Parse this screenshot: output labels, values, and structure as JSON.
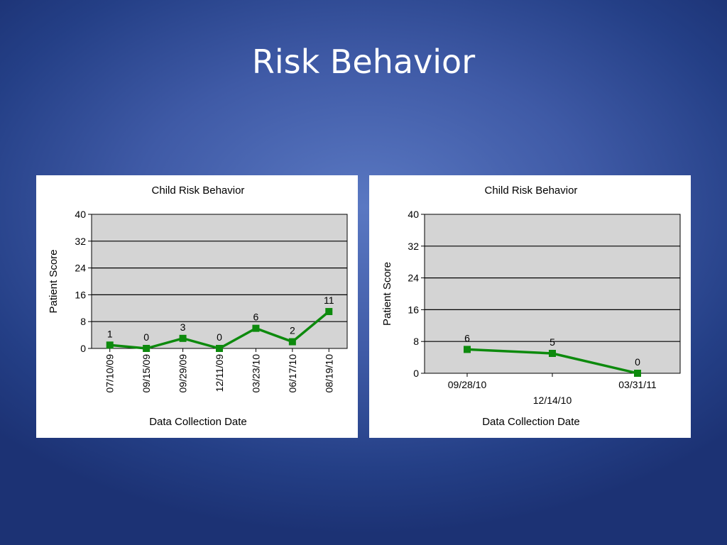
{
  "slide": {
    "title": "Risk Behavior"
  },
  "chart_data": [
    {
      "type": "line",
      "title": "Child Risk Behavior",
      "xlabel": "Data Collection Date",
      "ylabel": "Patient Score",
      "categories": [
        "07/10/09",
        "09/15/09",
        "09/29/09",
        "12/11/09",
        "03/23/10",
        "06/17/10",
        "08/19/10"
      ],
      "series": [
        {
          "values": [
            1,
            0,
            3,
            0,
            6,
            2,
            11
          ],
          "color": "#0d8a0d"
        }
      ],
      "data_labels": [
        "1",
        "0",
        "3",
        "0",
        "6",
        "2",
        "11"
      ],
      "ylim": [
        0,
        40
      ],
      "yticks": [
        "0",
        "8",
        "16",
        "24",
        "32",
        "40"
      ],
      "grid": true,
      "plot_background": "#d4d4d4",
      "x_tick_orientation": "vertical"
    },
    {
      "type": "line",
      "title": "Child Risk Behavior",
      "xlabel": "Data Collection Date",
      "ylabel": "Patient Score",
      "categories": [
        "09/28/10",
        "12/14/10",
        "03/31/11"
      ],
      "series": [
        {
          "values": [
            6,
            5,
            0
          ],
          "color": "#0d8a0d"
        }
      ],
      "data_labels": [
        "6",
        "5",
        "0"
      ],
      "ylim": [
        0,
        40
      ],
      "yticks": [
        "0",
        "8",
        "16",
        "24",
        "32",
        "40"
      ],
      "grid": true,
      "plot_background": "#d4d4d4",
      "x_tick_orientation": "staggered"
    }
  ]
}
